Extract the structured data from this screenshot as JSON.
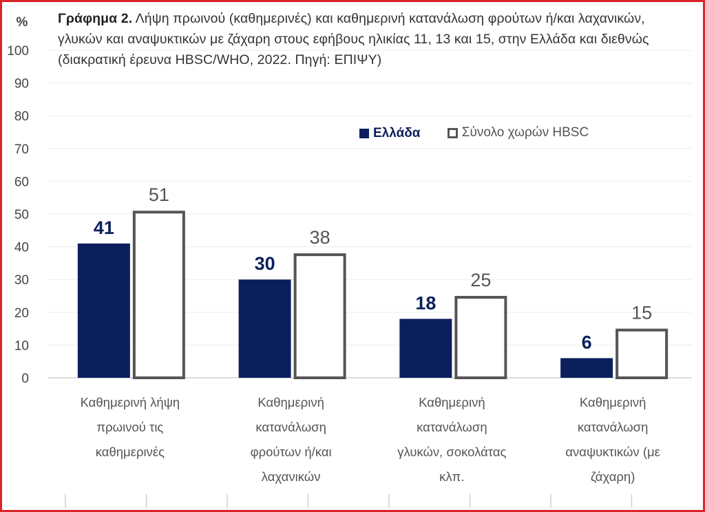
{
  "title_bold": "Γράφημα 2.",
  "title_rest": " Λήψη πρωινού (καθημερινές) και καθημερινή κατανάλωση φρούτων ή/και λαχανικών, γλυκών και αναψυκτικών με ζάχαρη στους εφήβους ηλικίας 11, 13 και 15, στην Ελλάδα και διεθνώς (διακρατική έρευνα HBSC/WHO, 2022. Πηγή: ΕΠΙΨΥ)",
  "colors": {
    "greece": "#0b1f5c",
    "hbsc_outline": "#555555",
    "frame": "#d9262b"
  },
  "chart_data": {
    "type": "bar",
    "ylabel": "%",
    "ylim": [
      0,
      100
    ],
    "yticks": [
      0,
      10,
      20,
      30,
      40,
      50,
      60,
      70,
      80,
      90,
      100
    ],
    "grid": true,
    "legend_position": "top-right",
    "categories": [
      [
        "Καθημερινή λήψη",
        "πρωινού τις",
        "καθημερινές"
      ],
      [
        "Καθημερινή",
        "κατανάλωση",
        "φρούτων ή/και",
        "λαχανικών"
      ],
      [
        "Καθημερινή",
        "κατανάλωση",
        "γλυκών, σοκολάτας",
        "κλπ."
      ],
      [
        "Καθημερινή",
        "κατανάλωση",
        "αναψυκτικών (με",
        "ζάχαρη)"
      ]
    ],
    "series": [
      {
        "name": "Ελλάδα",
        "values": [
          41,
          30,
          18,
          6
        ]
      },
      {
        "name": "Σύνολο χωρών HBSC",
        "values": [
          51,
          38,
          25,
          15
        ]
      }
    ]
  }
}
